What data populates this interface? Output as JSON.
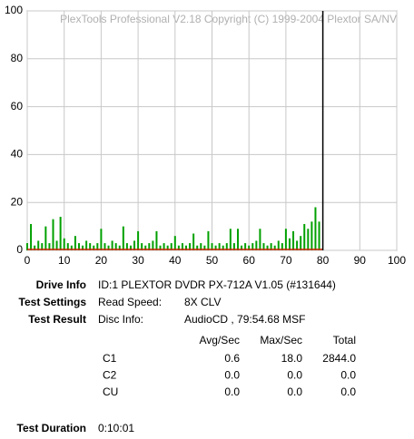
{
  "chart_data": {
    "type": "bar",
    "title": "PlexTools Professional V2.18 Copyright (C) 1999-2004 Plextor SA/NV",
    "xlim": [
      0,
      100
    ],
    "xticks": [
      0,
      10,
      20,
      30,
      40,
      50,
      60,
      70,
      80,
      90,
      100
    ],
    "ylim": [
      0,
      100
    ],
    "yticks": [
      0,
      20,
      40,
      60,
      80,
      100
    ],
    "grid": true,
    "end_marker": 80,
    "series": [
      {
        "color": "#00a000",
        "x": [
          0,
          1,
          2,
          3,
          4,
          5,
          6,
          7,
          8,
          9,
          10,
          11,
          12,
          13,
          14,
          15,
          16,
          17,
          18,
          19,
          20,
          21,
          22,
          23,
          24,
          25,
          26,
          27,
          28,
          29,
          30,
          31,
          32,
          33,
          34,
          35,
          36,
          37,
          38,
          39,
          40,
          41,
          42,
          43,
          44,
          45,
          46,
          47,
          48,
          49,
          50,
          51,
          52,
          53,
          54,
          55,
          56,
          57,
          58,
          59,
          60,
          61,
          62,
          63,
          64,
          65,
          66,
          67,
          68,
          69,
          70,
          71,
          72,
          73,
          74,
          75,
          76,
          77,
          78,
          79
        ],
        "values": [
          3,
          11,
          2,
          4,
          3,
          10,
          3,
          13,
          4,
          14,
          5,
          3,
          2,
          6,
          3,
          2,
          4,
          3,
          2,
          3,
          9,
          3,
          2,
          4,
          3,
          2,
          10,
          3,
          2,
          4,
          8,
          3,
          2,
          3,
          4,
          8,
          2,
          3,
          2,
          3,
          6,
          2,
          3,
          2,
          3,
          7,
          2,
          3,
          2,
          8,
          3,
          2,
          3,
          2,
          3,
          9,
          3,
          9,
          2,
          3,
          2,
          3,
          4,
          9,
          3,
          2,
          3,
          2,
          4,
          3,
          9,
          5,
          8,
          4,
          6,
          11,
          9,
          12,
          18,
          12
        ]
      },
      {
        "color": "#d02000",
        "x": [
          0,
          80
        ],
        "values": [
          0,
          0
        ]
      }
    ]
  },
  "report": {
    "drive_info": {
      "label": "Drive Info",
      "value": "ID:1 PLEXTOR DVDR PX-712A V1.05 (#131644)"
    },
    "test_settings": {
      "label": "Test Settings",
      "key": "Read Speed:",
      "value": "8X CLV"
    },
    "test_result": {
      "label": "Test Result",
      "key": "Disc Info:",
      "value": "AudioCD , 79:54.68 MSF"
    },
    "table": {
      "header": [
        "Avg/Sec",
        "Max/Sec",
        "Total"
      ],
      "rows": [
        [
          "C1",
          "0.6",
          "18.0",
          "2844.0"
        ],
        [
          "C2",
          "0.0",
          "0.0",
          "0.0"
        ],
        [
          "CU",
          "0.0",
          "0.0",
          "0.0"
        ]
      ]
    },
    "test_duration": {
      "label": "Test Duration",
      "value": "0:10:01"
    }
  }
}
